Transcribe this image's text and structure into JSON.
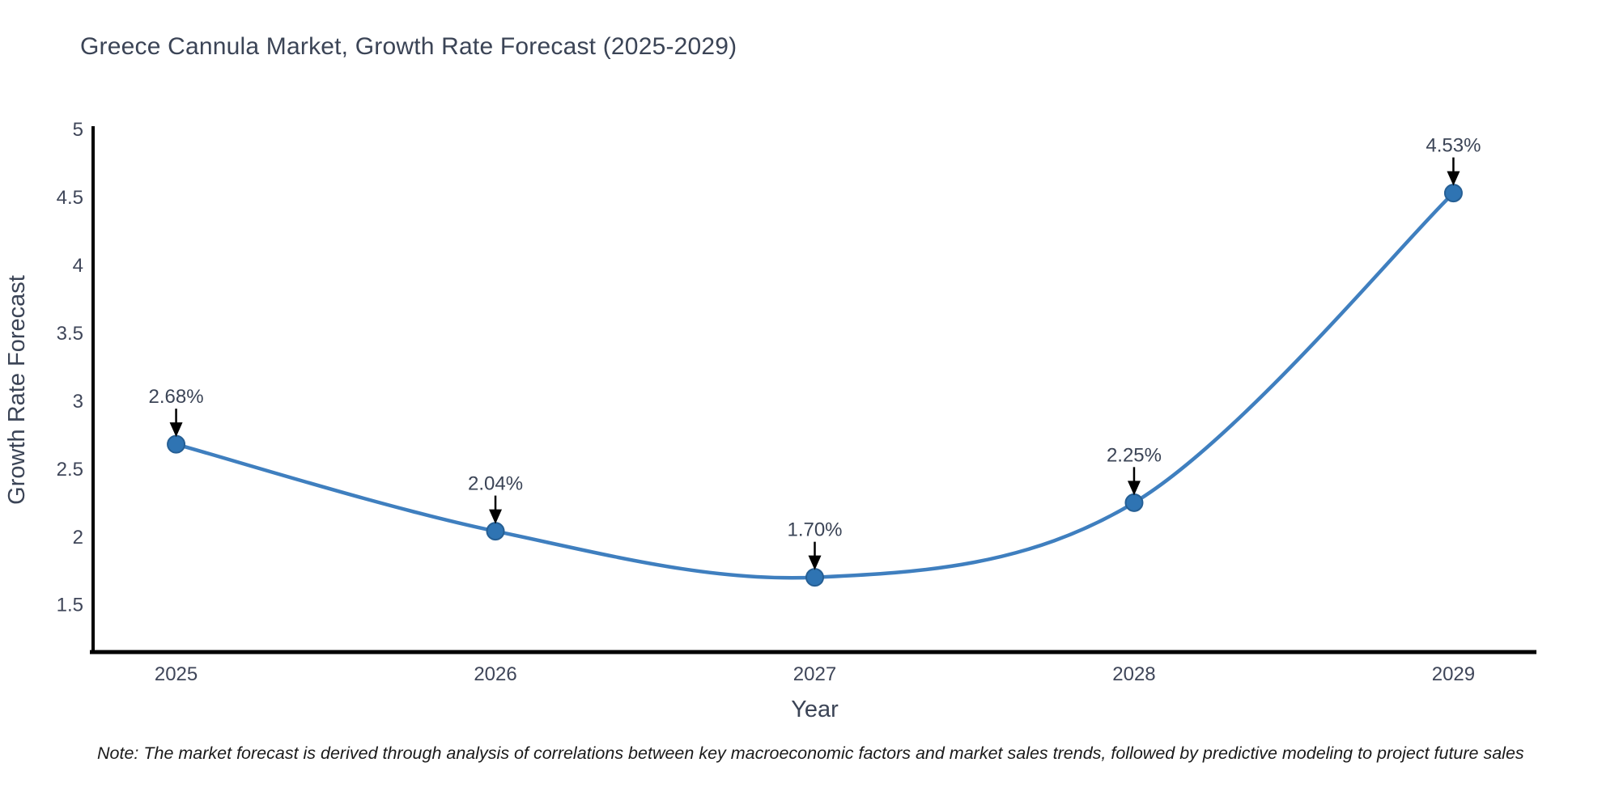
{
  "chart_data": {
    "type": "line",
    "title": "Greece Cannula Market, Growth Rate Forecast (2025-2029)",
    "xlabel": "Year",
    "ylabel": "Growth Rate Forecast",
    "x": [
      2025,
      2026,
      2027,
      2028,
      2029
    ],
    "xtick_labels": [
      "2025",
      "2026",
      "2027",
      "2028",
      "2029"
    ],
    "values": [
      2.68,
      2.04,
      1.7,
      2.25,
      4.53
    ],
    "point_labels": [
      "2.68%",
      "2.04%",
      "1.70%",
      "2.25%",
      "4.53%"
    ],
    "yticks": [
      1.5,
      2,
      2.5,
      3,
      3.5,
      4,
      4.5,
      5
    ],
    "ytick_labels": [
      "1.5",
      "2",
      "2.5",
      "3",
      "3.5",
      "4",
      "4.5",
      "5"
    ],
    "xlim": [
      2024.74,
      2029.26
    ],
    "ylim": [
      1.15,
      5.01
    ],
    "grid": false,
    "legend_position": "none",
    "curve": "spline",
    "line_color": "#3f7fbf",
    "marker_color": "#2f74b3",
    "marker_edge_color": "#265f94",
    "arrow_color": "#000000"
  },
  "colors": {
    "background": "#ffffff",
    "title_text": "#3b4456",
    "tick_text": "#3f4659",
    "axis_line": "#000000",
    "note_text": "#1a1a1a"
  },
  "note": {
    "text": "Note: The market forecast is derived through analysis of correlations between key macroeconomic factors and market sales trends, followed by predictive modeling to project future sales"
  }
}
